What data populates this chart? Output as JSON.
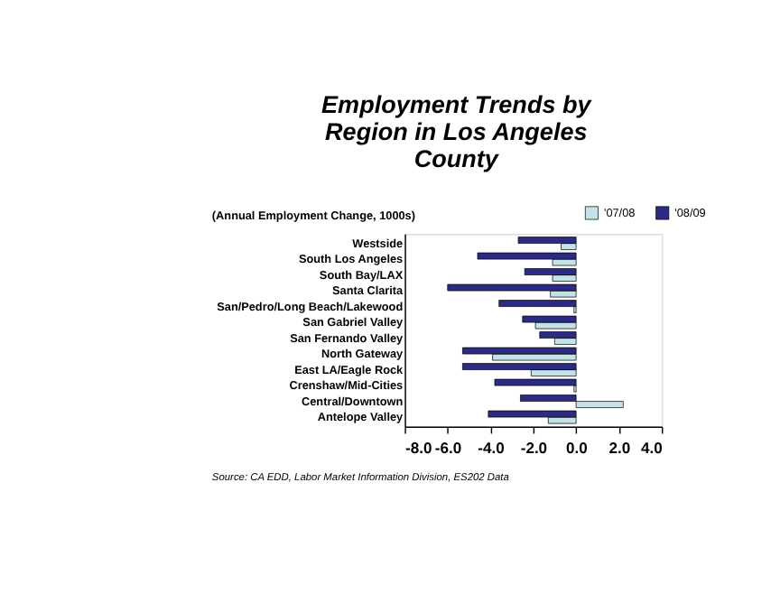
{
  "chart_data": {
    "type": "bar",
    "orientation": "horizontal",
    "title": "Employment Trends by Region in Los Angeles County",
    "subtitle": "(Annual Employment Change, 1000s)",
    "categories": [
      "Westside",
      "South Los Angeles",
      "South Bay/LAX",
      "Santa Clarita",
      "San/Pedro/Long Beach/Lakewood",
      "San Gabriel Valley",
      "San Fernando Valley",
      "North Gateway",
      "East LA/Eagle Rock",
      "Crenshaw/Mid-Cities",
      "Central/Downtown",
      "Antelope Valley"
    ],
    "series": [
      {
        "name": "'07/08",
        "color": "#c4e3e8",
        "values": [
          -0.7,
          -1.1,
          -1.1,
          -1.2,
          -0.1,
          -1.9,
          -1.0,
          -3.9,
          -2.1,
          -0.1,
          2.2,
          -1.3
        ]
      },
      {
        "name": "'08/09",
        "color": "#2b2b85",
        "values": [
          -2.7,
          -4.6,
          -2.4,
          -6.0,
          -3.6,
          -2.5,
          -1.7,
          -5.3,
          -5.3,
          -3.8,
          -2.6,
          -4.1
        ]
      }
    ],
    "xlim": [
      -8,
      4
    ],
    "xticks": [
      {
        "value": -8,
        "label": "-8.0"
      },
      {
        "value": -6,
        "label": "-6.0"
      },
      {
        "value": -4,
        "label": "-4.0"
      },
      {
        "value": -2,
        "label": "-2.0"
      },
      {
        "value": 0,
        "label": "0.0"
      },
      {
        "value": 2,
        "label": "2.0"
      },
      {
        "value": 4,
        "label": "4.0"
      }
    ],
    "grid": false,
    "legend": "top right",
    "annotations": [
      "Source:  CA EDD, Labor Market Information Division, ES202 Data"
    ]
  }
}
